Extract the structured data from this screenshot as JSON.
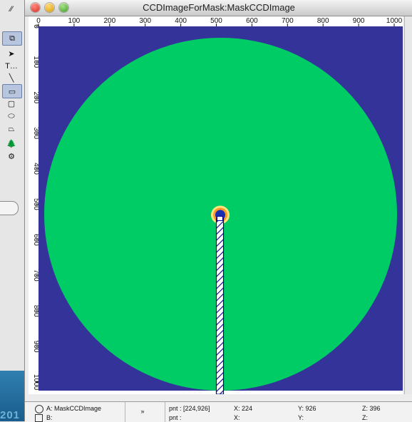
{
  "window": {
    "title": "CCDImageForMask:MaskCCDImage"
  },
  "desktop": {
    "corner_text": "201"
  },
  "tools": [
    {
      "name": "graph-info-tool",
      "glyph": "⁄⁄"
    },
    {
      "name": "select-shapes-tool",
      "glyph": "⧉",
      "selected": true
    },
    {
      "name": "arrow-tool",
      "glyph": "➤"
    },
    {
      "name": "text-tool",
      "glyph": "T…"
    },
    {
      "name": "line-tool",
      "glyph": "╲"
    },
    {
      "name": "rectangle-tool",
      "glyph": "▭",
      "selected": true
    },
    {
      "name": "rounded-rectangle-tool",
      "glyph": "▢"
    },
    {
      "name": "oval-tool",
      "glyph": "⬭"
    },
    {
      "name": "polygon-tool",
      "glyph": "⏢"
    },
    {
      "name": "tree-drawing-tool",
      "glyph": "🌲"
    },
    {
      "name": "draw-environment-tool",
      "glyph": "⚙"
    }
  ],
  "image": {
    "background_color": "#33339a",
    "disk_color": "#00cc66",
    "beamstop_color": "#1a2fb0",
    "mask_stroke_color": "#00008b",
    "x_ticks": [
      "0",
      "100",
      "200",
      "300",
      "400",
      "500",
      "600",
      "700",
      "800",
      "900",
      "1000"
    ],
    "y_ticks": [
      "0",
      "100",
      "200",
      "300",
      "400",
      "500",
      "600",
      "700",
      "800",
      "900",
      "1000"
    ],
    "axis_range": [
      0,
      1024
    ]
  },
  "status_bar": {
    "trace_a": "A: MaskCCDImage",
    "trace_b": "B:",
    "expand": "»",
    "pnt_a": "pnt : [224,926]",
    "x_a": "X: 224",
    "y_a": "Y: 926",
    "z_a": "Z: 396",
    "pnt_b": "pnt :",
    "x_b": "X:",
    "y_b": "Y:",
    "z_b": "Z:"
  }
}
